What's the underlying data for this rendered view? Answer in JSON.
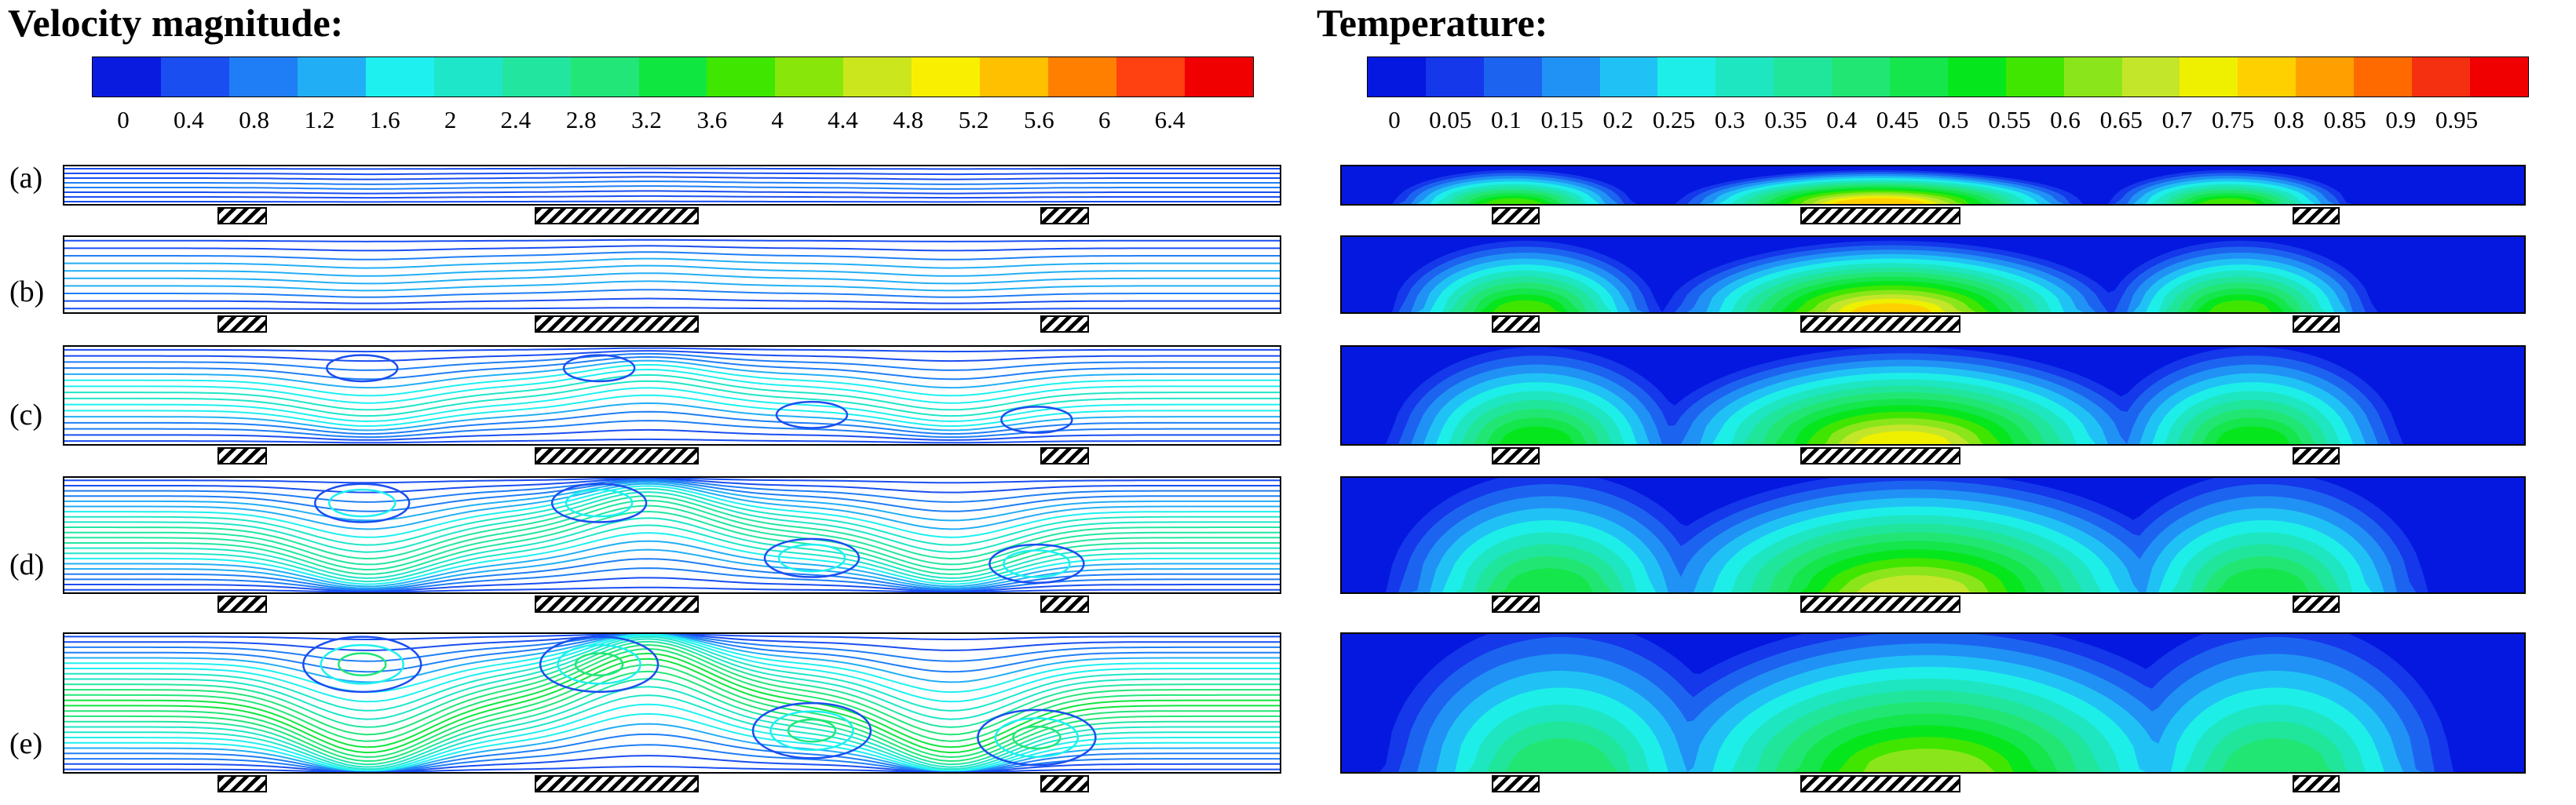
{
  "velocity": {
    "title": "Velocity magnitude:",
    "tick_labels": [
      "0",
      "0.4",
      "0.8",
      "1.2",
      "1.6",
      "2",
      "2.4",
      "2.8",
      "3.2",
      "3.6",
      "4",
      "4.4",
      "4.8",
      "5.2",
      "5.6",
      "6",
      "6.4"
    ],
    "colors": [
      "#0a1be0",
      "#1a4ef0",
      "#1f7ef5",
      "#22aef5",
      "#1ef0f0",
      "#1ee6c8",
      "#22e6a0",
      "#22e678",
      "#10e640",
      "#3ee600",
      "#88e60a",
      "#cce61e",
      "#f8f000",
      "#ffc000",
      "#ff8000",
      "#ff4010",
      "#f00000"
    ]
  },
  "temperature": {
    "title": "Temperature:",
    "tick_labels": [
      "0",
      "0.05",
      "0.1",
      "0.15",
      "0.2",
      "0.25",
      "0.3",
      "0.35",
      "0.4",
      "0.45",
      "0.5",
      "0.55",
      "0.6",
      "0.65",
      "0.7",
      "0.75",
      "0.8",
      "0.85",
      "0.9",
      "0.95"
    ],
    "colors": [
      "#0418e0",
      "#1438ea",
      "#1c64f0",
      "#2092f5",
      "#20c2f5",
      "#1eeee8",
      "#1ee6c0",
      "#20e69c",
      "#22e674",
      "#14e64c",
      "#06e61c",
      "#40e600",
      "#8ae61a",
      "#c4e62a",
      "#eef000",
      "#ffd000",
      "#ffa000",
      "#ff6a00",
      "#f53010",
      "#f00000"
    ]
  },
  "rows": [
    {
      "label": "(a)"
    },
    {
      "label": "(b)"
    },
    {
      "label": "(c)"
    },
    {
      "label": "(d)"
    },
    {
      "label": "(e)"
    }
  ]
}
